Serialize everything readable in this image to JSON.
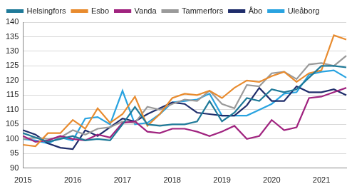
{
  "chart_data": {
    "type": "line",
    "categories": [
      "2015",
      null,
      null,
      null,
      "2016",
      null,
      null,
      null,
      "2017",
      null,
      null,
      null,
      "2018",
      null,
      null,
      null,
      "2019",
      null,
      null,
      null,
      "2020",
      null,
      null,
      null,
      "2021",
      null,
      null
    ],
    "series": [
      {
        "name": "Helsingfors",
        "color": "#1f7a99",
        "values": [
          102,
          100.5,
          99,
          100,
          101,
          99.5,
          100,
          99.5,
          105,
          111,
          105,
          104.5,
          105,
          105,
          106,
          113,
          106,
          109,
          114,
          113,
          117,
          116,
          117,
          121,
          125,
          125,
          124.5
        ]
      },
      {
        "name": "Esbo",
        "color": "#e88b2e",
        "values": [
          98,
          97.5,
          102,
          102,
          106.5,
          103.5,
          110.5,
          105.5,
          108.5,
          114.5,
          104.5,
          108.5,
          114,
          115.5,
          115,
          116.5,
          114,
          117.5,
          120,
          119.5,
          121.5,
          123,
          119.5,
          122.5,
          123.5,
          135.5,
          134
        ]
      },
      {
        "name": "Vanda",
        "color": "#a0237f",
        "values": [
          101,
          99,
          99.5,
          101,
          100,
          99.5,
          101.5,
          100.5,
          105.5,
          106,
          102.5,
          102,
          103.5,
          103.5,
          102.5,
          101,
          102.5,
          104.5,
          100,
          101,
          106.5,
          103,
          104,
          114,
          114.5,
          116,
          117.5
        ]
      },
      {
        "name": "Tammerfors",
        "color": "#9a9a9a",
        "values": [
          100,
          100.5,
          100,
          100.5,
          103,
          101.5,
          103.5,
          104,
          106,
          105.5,
          111,
          110,
          112,
          113.5,
          113,
          116.5,
          112,
          110.5,
          118.5,
          118,
          122.5,
          123,
          120.5,
          125.5,
          126,
          125,
          128.5
        ]
      },
      {
        "name": "Åbo",
        "color": "#1f2d6b",
        "values": [
          103,
          101.5,
          98.5,
          97,
          96.5,
          103,
          101,
          104,
          107,
          106,
          108.5,
          110.5,
          112.5,
          112,
          109,
          108.5,
          108,
          108,
          111.5,
          117.5,
          113,
          113,
          118,
          116,
          116,
          117,
          115
        ]
      },
      {
        "name": "Uleåborg",
        "color": "#29a3e0",
        "values": [
          100,
          99.5,
          98.5,
          100.5,
          99.5,
          107,
          107.5,
          105,
          116.5,
          105,
          105.5,
          108.5,
          112.5,
          113,
          113.5,
          115.5,
          108,
          108,
          108,
          110,
          112,
          115.5,
          116,
          122,
          123,
          123.5,
          121
        ]
      }
    ],
    "ylim": [
      90,
      140
    ],
    "yticks": [
      90,
      95,
      100,
      105,
      110,
      115,
      120,
      125,
      130,
      135,
      140
    ],
    "grid": true,
    "legend": "top-left"
  }
}
